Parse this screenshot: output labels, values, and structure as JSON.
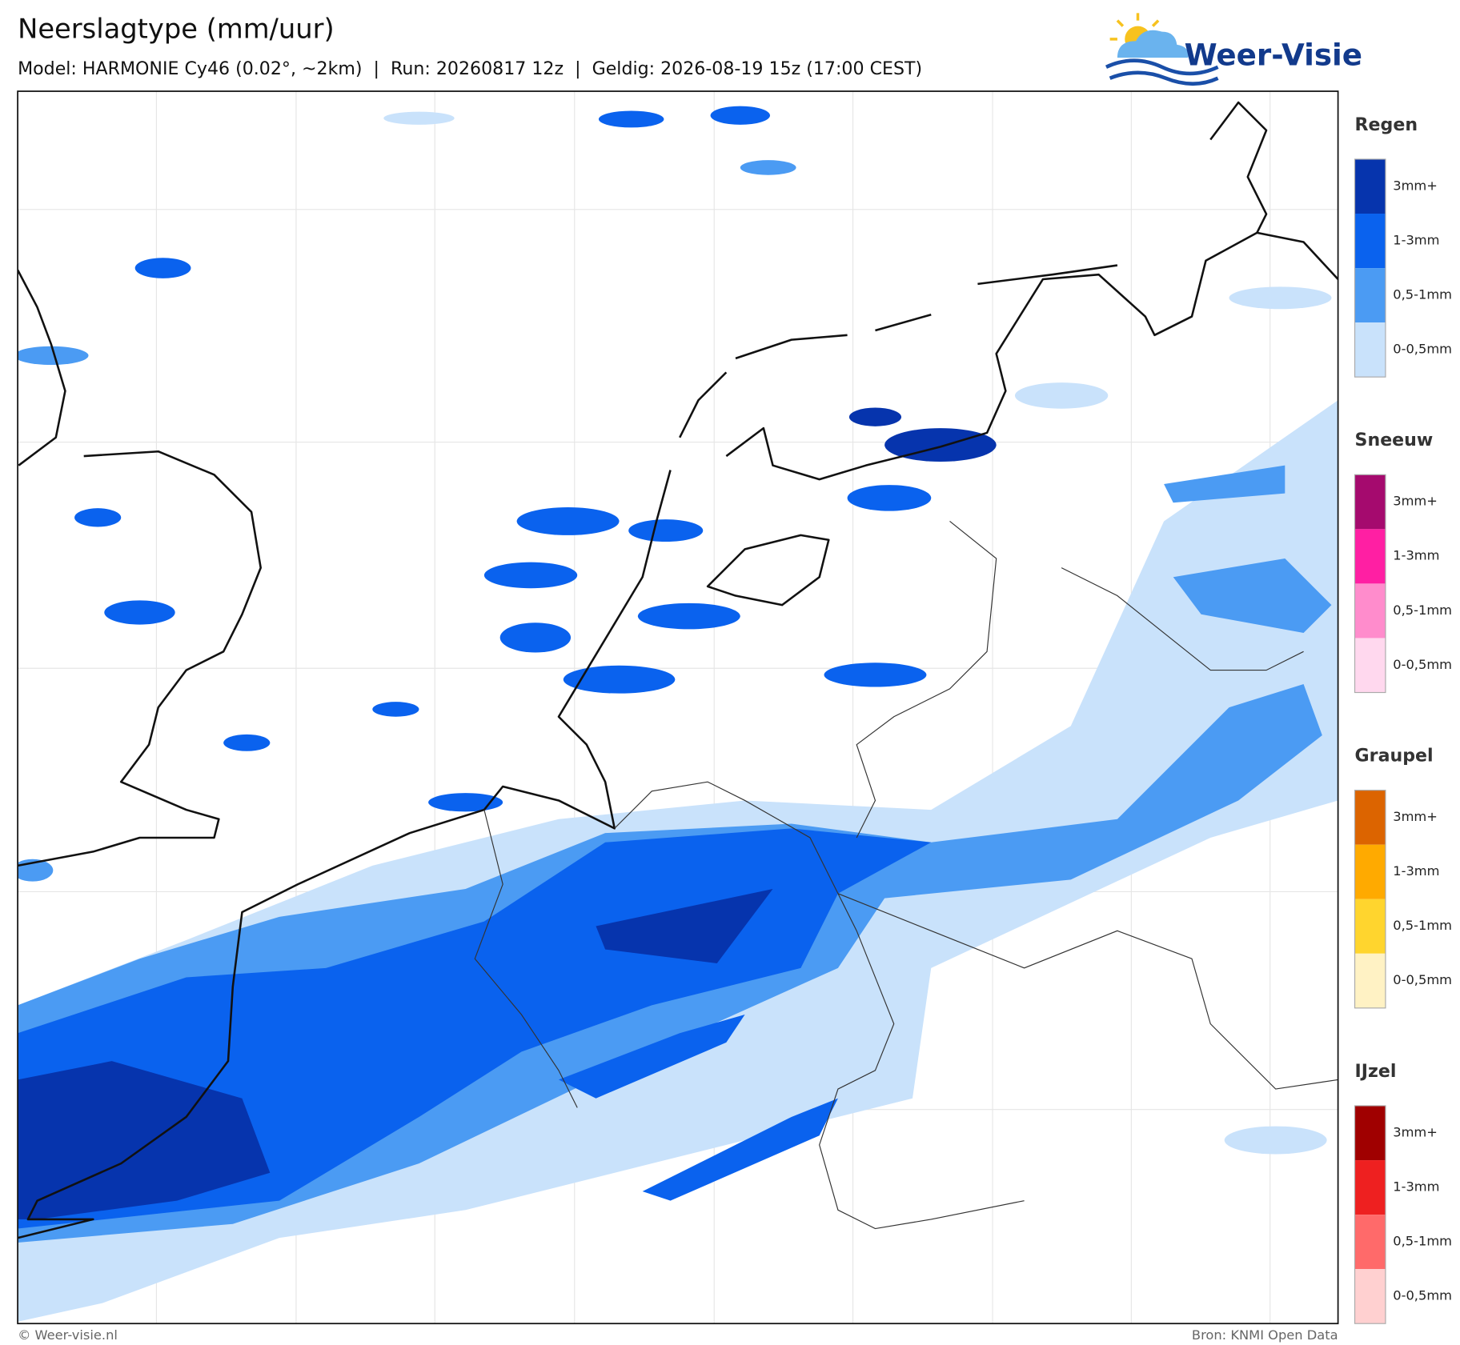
{
  "header": {
    "title": "Neerslagtype (mm/uur)",
    "subtitle": "Model: HARMONIE Cy46 (0.02°, ~2km)  |  Run: 20260817 12z  |  Geldig: 2026-08-19 15z (17:00 CEST)",
    "logo": "Weer-Visie"
  },
  "legend": {
    "groups": [
      {
        "title": "Regen",
        "labels": [
          "3mm+",
          "1-3mm",
          "0,5-1mm",
          "0-0,5mm"
        ],
        "colors": [
          "#0634ad",
          "#0a62ee",
          "#4b9bf3",
          "#c9e2fb"
        ]
      },
      {
        "title": "Sneeuw",
        "labels": [
          "3mm+",
          "1-3mm",
          "0,5-1mm",
          "0-0,5mm"
        ],
        "colors": [
          "#a50a6e",
          "#ff1fa3",
          "#ff8ccc",
          "#ffd8ee"
        ]
      },
      {
        "title": "Graupel",
        "labels": [
          "3mm+",
          "1-3mm",
          "0,5-1mm",
          "0-0,5mm"
        ],
        "colors": [
          "#dc6400",
          "#ffaa00",
          "#ffd52e",
          "#fff2c4"
        ]
      },
      {
        "title": "IJzel",
        "labels": [
          "3mm+",
          "1-3mm",
          "0,5-1mm",
          "0-0,5mm"
        ],
        "colors": [
          "#a00000",
          "#ee2020",
          "#ff6a6a",
          "#ffd0d0"
        ]
      }
    ]
  },
  "footer": {
    "copyright": "© Weer-visie.nl",
    "source": "Bron: KNMI Open Data"
  }
}
